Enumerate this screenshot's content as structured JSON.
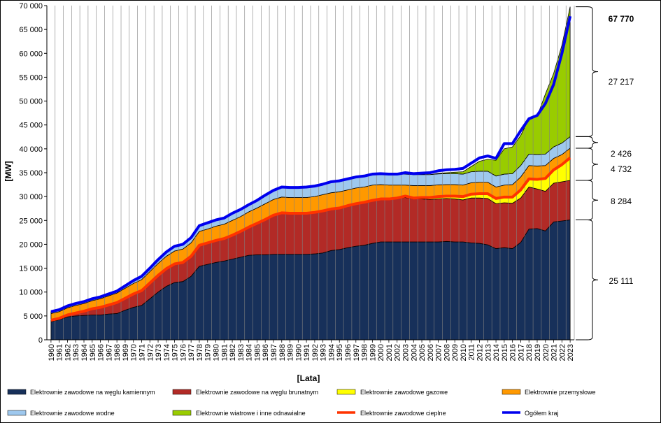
{
  "chart_data": {
    "type": "area",
    "ylabel": "[MW]",
    "xlabel": "[Lata]",
    "ylim": [
      0,
      70000
    ],
    "y_ticks": [
      "0",
      "5 000",
      "10 000",
      "15 000",
      "20 000",
      "25 000",
      "30 000",
      "35 000",
      "40 000",
      "45 000",
      "50 000",
      "55 000",
      "60 000",
      "65 000",
      "70 000"
    ],
    "grid": "vertical",
    "legend_position": "bottom",
    "x": [
      1960,
      1961,
      1962,
      1963,
      1964,
      1965,
      1966,
      1967,
      1968,
      1969,
      1970,
      1971,
      1972,
      1973,
      1974,
      1975,
      1976,
      1977,
      1978,
      1979,
      1980,
      1981,
      1982,
      1983,
      1984,
      1985,
      1986,
      1987,
      1988,
      1989,
      1990,
      1991,
      1992,
      1993,
      1994,
      1995,
      1996,
      1997,
      1998,
      1999,
      2000,
      2001,
      2002,
      2003,
      2004,
      2005,
      2006,
      2007,
      2008,
      2009,
      2010,
      2011,
      2012,
      2013,
      2014,
      2015,
      2016,
      2017,
      2018,
      2019,
      2020,
      2021,
      2022,
      2023
    ],
    "series": [
      {
        "name": "Elektrownie zawodowe na węglu kamiennym",
        "color": "#17305a",
        "kind": "area",
        "values": [
          3800,
          4200,
          4800,
          5000,
          5100,
          5200,
          5200,
          5400,
          5500,
          6200,
          6800,
          7200,
          8600,
          10000,
          11200,
          12000,
          12200,
          13300,
          15400,
          15800,
          16200,
          16500,
          16900,
          17300,
          17700,
          17800,
          17800,
          17900,
          17900,
          17900,
          17900,
          17900,
          18000,
          18200,
          18700,
          18900,
          19300,
          19600,
          19800,
          20200,
          20500,
          20500,
          20500,
          20500,
          20500,
          20500,
          20500,
          20500,
          20600,
          20500,
          20500,
          20300,
          20200,
          19900,
          19100,
          19300,
          19100,
          20400,
          23200,
          23300,
          22800,
          24700,
          24900,
          25111
        ]
      },
      {
        "name": "Elektrownie zawodowe na węglu brunatnym",
        "color": "#b22a26",
        "kind": "area",
        "values": [
          300,
          300,
          400,
          600,
          900,
          1300,
          1600,
          1900,
          2300,
          2500,
          2800,
          3100,
          3300,
          3500,
          3700,
          3900,
          4000,
          4200,
          4400,
          4500,
          4600,
          4700,
          5000,
          5400,
          5900,
          6600,
          7400,
          8200,
          8700,
          8600,
          8600,
          8600,
          8700,
          8800,
          8700,
          8700,
          8800,
          8900,
          9000,
          9000,
          9000,
          9000,
          9200,
          9300,
          9000,
          9000,
          8900,
          9000,
          9000,
          9000,
          8800,
          9400,
          9500,
          9700,
          9400,
          9400,
          9500,
          9300,
          8800,
          8300,
          8300,
          8100,
          8200,
          8284
        ]
      },
      {
        "name": "Elektrownie zawodowe gazowe",
        "color": "#ffff00",
        "kind": "area",
        "values": [
          0,
          0,
          0,
          0,
          0,
          0,
          0,
          0,
          0,
          0,
          0,
          0,
          0,
          0,
          0,
          0,
          0,
          0,
          0,
          0,
          0,
          0,
          0,
          0,
          0,
          0,
          0,
          0,
          0,
          0,
          0,
          0,
          0,
          0,
          0,
          0,
          0,
          0,
          0,
          0,
          0,
          0,
          0,
          0,
          200,
          300,
          400,
          450,
          500,
          600,
          700,
          800,
          900,
          1000,
          1100,
          1200,
          1300,
          1700,
          1700,
          2000,
          2700,
          2800,
          3600,
          4732
        ]
      },
      {
        "name": "Elektrownie przemysłowe",
        "color": "#ff9900",
        "kind": "area",
        "values": [
          1400,
          1400,
          1500,
          1600,
          1600,
          1700,
          1800,
          1900,
          2000,
          2100,
          2200,
          2300,
          2400,
          2500,
          2600,
          2700,
          2800,
          2800,
          2900,
          2900,
          3000,
          3000,
          3100,
          3100,
          3200,
          3200,
          3300,
          3300,
          3300,
          3300,
          3300,
          3300,
          3300,
          3400,
          3400,
          3400,
          3300,
          3300,
          3200,
          3200,
          3000,
          2900,
          2700,
          2600,
          2600,
          2500,
          2500,
          2500,
          2400,
          2400,
          2400,
          2400,
          2400,
          2400,
          2400,
          2500,
          2600,
          2700,
          2800,
          2800,
          2700,
          2400,
          2100,
          2000
        ]
      },
      {
        "name": "Elektrownie zawodowe wodne",
        "color": "#9ec8ee",
        "kind": "area",
        "values": [
          400,
          400,
          400,
          400,
          400,
          400,
          400,
          400,
          400,
          500,
          600,
          700,
          700,
          800,
          900,
          1000,
          1000,
          1100,
          1200,
          1300,
          1300,
          1300,
          1500,
          1500,
          1500,
          1600,
          1800,
          1900,
          2100,
          2100,
          2100,
          2200,
          2200,
          2200,
          2300,
          2300,
          2300,
          2300,
          2300,
          2300,
          2300,
          2300,
          2300,
          2300,
          2300,
          2300,
          2300,
          2300,
          2300,
          2300,
          2300,
          2300,
          2300,
          2300,
          2300,
          2300,
          2300,
          2400,
          2400,
          2400,
          2400,
          2400,
          2400,
          2426
        ]
      },
      {
        "name": "Elektrownie wiatrowe i inne odnawialne",
        "color": "#99cc00",
        "kind": "area",
        "values": [
          0,
          0,
          0,
          0,
          0,
          0,
          0,
          0,
          0,
          0,
          0,
          0,
          0,
          0,
          0,
          0,
          0,
          0,
          0,
          0,
          0,
          0,
          0,
          0,
          0,
          0,
          0,
          0,
          0,
          0,
          0,
          0,
          0,
          0,
          0,
          0,
          0,
          0,
          0,
          0,
          0,
          0,
          0,
          0,
          0,
          0,
          0,
          100,
          200,
          300,
          500,
          1100,
          2100,
          2500,
          3300,
          5300,
          5600,
          6300,
          7400,
          8000,
          12600,
          15400,
          20500,
          27217
        ]
      },
      {
        "name": "Elektrownie zawodowe cieplne",
        "color": "#ff3300",
        "kind": "line",
        "values": [
          4100,
          4500,
          5200,
          5600,
          6000,
          6500,
          6800,
          7300,
          7800,
          8700,
          9600,
          10300,
          11900,
          13500,
          14900,
          15900,
          16200,
          17500,
          19800,
          20300,
          20800,
          21200,
          21900,
          22700,
          23600,
          24400,
          25200,
          26100,
          26600,
          26500,
          26500,
          26500,
          26700,
          27000,
          27400,
          27600,
          28100,
          28500,
          28800,
          29200,
          29500,
          29500,
          29700,
          30100,
          29700,
          29800,
          29800,
          30000,
          30100,
          30100,
          30000,
          30500,
          30600,
          30600,
          29600,
          29900,
          29900,
          31400,
          33700,
          33600,
          33800,
          35600,
          36700,
          38127
        ]
      },
      {
        "name": "Ogółem kraj",
        "color": "#0000ee",
        "kind": "line",
        "values": [
          5900,
          6300,
          7100,
          7600,
          8000,
          8600,
          9000,
          9600,
          10200,
          11300,
          12400,
          13300,
          15000,
          16800,
          18400,
          19600,
          20000,
          21400,
          23900,
          24500,
          25100,
          25500,
          26500,
          27300,
          28300,
          29200,
          30300,
          31300,
          32000,
          31900,
          31900,
          32000,
          32200,
          32600,
          33100,
          33300,
          33700,
          34100,
          34300,
          34700,
          34800,
          34700,
          34700,
          35000,
          34800,
          34900,
          35000,
          35400,
          35600,
          35700,
          35900,
          37000,
          38100,
          38500,
          38000,
          41100,
          41100,
          43800,
          46300,
          47000,
          49500,
          53500,
          60000,
          67770
        ]
      }
    ],
    "annotations": {
      "total": "67 770",
      "brackets": [
        "27 217",
        "2 426",
        "4 732",
        "8 284",
        "25 111"
      ]
    },
    "legend": [
      {
        "label": "Elektrownie zawodowe na węglu kamiennym",
        "color": "#17305a",
        "kind": "box"
      },
      {
        "label": "Elektrownie zawodowe na węglu brunatnym",
        "color": "#b22a26",
        "kind": "box"
      },
      {
        "label": "Elektrownie zawodowe gazowe",
        "color": "#ffff00",
        "kind": "box"
      },
      {
        "label": "Elektrownie przemysłowe",
        "color": "#ff9900",
        "kind": "box"
      },
      {
        "label": "Elektrownie zawodowe wodne",
        "color": "#9ec8ee",
        "kind": "box"
      },
      {
        "label": "Elektrownie wiatrowe i inne odnawialne",
        "color": "#99cc00",
        "kind": "box"
      },
      {
        "label": "Elektrownie zawodowe cieplne",
        "color": "#ff3300",
        "kind": "line"
      },
      {
        "label": "Ogółem kraj",
        "color": "#0000ee",
        "kind": "line"
      }
    ]
  }
}
